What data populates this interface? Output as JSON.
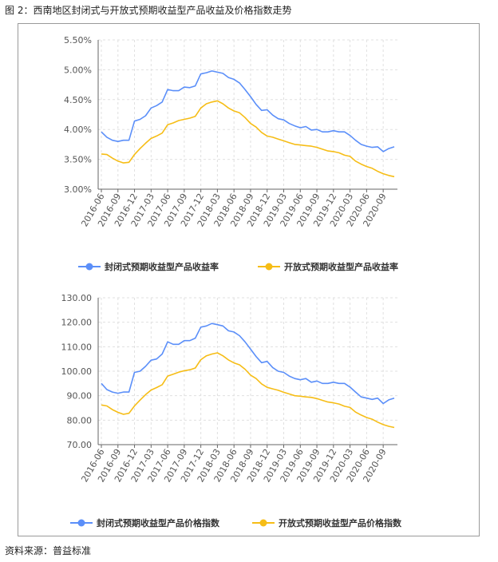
{
  "figure_title": "图 2：西南地区封闭式与开放式预期收益型产品收益及价格指数走势",
  "source": "资料来源：普益标准",
  "colors": {
    "closed": "#5b8ff9",
    "open": "#f6bd16",
    "axis": "#666666",
    "grid": "#e0e0e0"
  },
  "chart_data": [
    {
      "type": "line",
      "title": "",
      "xlabel": "",
      "ylabel": "",
      "ylim": [
        3.0,
        5.5
      ],
      "yticks": [
        "3.00%",
        "3.50%",
        "4.00%",
        "4.50%",
        "5.00%",
        "5.50%"
      ],
      "ytick_values": [
        3.0,
        3.5,
        4.0,
        4.5,
        5.0,
        5.5
      ],
      "grid": true,
      "legend_position": "bottom-center",
      "x": [
        "2016-06",
        "2016-07",
        "2016-08",
        "2016-09",
        "2016-10",
        "2016-11",
        "2016-12",
        "2017-01",
        "2017-02",
        "2017-03",
        "2017-04",
        "2017-05",
        "2017-06",
        "2017-07",
        "2017-08",
        "2017-09",
        "2017-10",
        "2017-11",
        "2017-12",
        "2018-01",
        "2018-02",
        "2018-03",
        "2018-04",
        "2018-05",
        "2018-06",
        "2018-07",
        "2018-08",
        "2018-09",
        "2018-10",
        "2018-11",
        "2018-12",
        "2019-01",
        "2019-02",
        "2019-03",
        "2019-04",
        "2019-05",
        "2019-06",
        "2019-07",
        "2019-08",
        "2019-09",
        "2019-10",
        "2019-11",
        "2019-12",
        "2020-01",
        "2020-02",
        "2020-03",
        "2020-04",
        "2020-05",
        "2020-06",
        "2020-07",
        "2020-08",
        "2020-09",
        "2020-10",
        "2020-11"
      ],
      "xtick_labels": [
        "2016-06",
        "2016-09",
        "2016-12",
        "2017-03",
        "2017-06",
        "2017-09",
        "2017-12",
        "2018-03",
        "2018-06",
        "2018-09",
        "2018-12",
        "2019-03",
        "2019-06",
        "2019-09",
        "2019-12",
        "2020-03",
        "2020-06",
        "2020-09"
      ],
      "series": [
        {
          "name": "封闭式预期收益型产品收益率",
          "color_key": "closed",
          "values": [
            3.96,
            3.87,
            3.82,
            3.8,
            3.82,
            3.82,
            4.14,
            4.17,
            4.23,
            4.36,
            4.4,
            4.46,
            4.67,
            4.65,
            4.65,
            4.71,
            4.7,
            4.73,
            4.93,
            4.95,
            4.98,
            4.96,
            4.94,
            4.87,
            4.84,
            4.78,
            4.67,
            4.55,
            4.42,
            4.32,
            4.33,
            4.24,
            4.18,
            4.16,
            4.1,
            4.06,
            4.03,
            4.05,
            3.99,
            4.0,
            3.96,
            3.96,
            3.98,
            3.96,
            3.96,
            3.9,
            3.82,
            3.75,
            3.72,
            3.7,
            3.71,
            3.63,
            3.68,
            3.71
          ]
        },
        {
          "name": "开放式预期收益型产品收益率",
          "color_key": "open",
          "values": [
            3.59,
            3.58,
            3.52,
            3.47,
            3.44,
            3.45,
            3.58,
            3.68,
            3.77,
            3.85,
            3.89,
            3.94,
            4.08,
            4.11,
            4.15,
            4.17,
            4.19,
            4.22,
            4.36,
            4.43,
            4.46,
            4.48,
            4.43,
            4.36,
            4.31,
            4.28,
            4.2,
            4.1,
            4.04,
            3.95,
            3.89,
            3.87,
            3.84,
            3.81,
            3.78,
            3.75,
            3.74,
            3.73,
            3.72,
            3.7,
            3.67,
            3.64,
            3.63,
            3.61,
            3.57,
            3.55,
            3.47,
            3.42,
            3.38,
            3.35,
            3.3,
            3.26,
            3.23,
            3.21
          ]
        }
      ]
    },
    {
      "type": "line",
      "title": "",
      "xlabel": "",
      "ylabel": "",
      "ylim": [
        70,
        130
      ],
      "yticks": [
        "70.00",
        "80.00",
        "90.00",
        "100.00",
        "110.00",
        "120.00",
        "130.00"
      ],
      "ytick_values": [
        70,
        80,
        90,
        100,
        110,
        120,
        130
      ],
      "grid": true,
      "legend_position": "bottom-center",
      "x": [
        "2016-06",
        "2016-07",
        "2016-08",
        "2016-09",
        "2016-10",
        "2016-11",
        "2016-12",
        "2017-01",
        "2017-02",
        "2017-03",
        "2017-04",
        "2017-05",
        "2017-06",
        "2017-07",
        "2017-08",
        "2017-09",
        "2017-10",
        "2017-11",
        "2017-12",
        "2018-01",
        "2018-02",
        "2018-03",
        "2018-04",
        "2018-05",
        "2018-06",
        "2018-07",
        "2018-08",
        "2018-09",
        "2018-10",
        "2018-11",
        "2018-12",
        "2019-01",
        "2019-02",
        "2019-03",
        "2019-04",
        "2019-05",
        "2019-06",
        "2019-07",
        "2019-08",
        "2019-09",
        "2019-10",
        "2019-11",
        "2019-12",
        "2020-01",
        "2020-02",
        "2020-03",
        "2020-04",
        "2020-05",
        "2020-06",
        "2020-07",
        "2020-08",
        "2020-09",
        "2020-10",
        "2020-11"
      ],
      "xtick_labels": [
        "2016-06",
        "2016-09",
        "2016-12",
        "2017-03",
        "2017-06",
        "2017-09",
        "2017-12",
        "2018-03",
        "2018-06",
        "2018-09",
        "2018-12",
        "2019-03",
        "2019-06",
        "2019-09",
        "2019-12",
        "2020-03",
        "2020-06",
        "2020-09"
      ],
      "series": [
        {
          "name": "封闭式预期收益型产品价格指数",
          "color_key": "closed",
          "values": [
            95.0,
            92.5,
            91.5,
            91.0,
            91.5,
            91.5,
            99.5,
            100.0,
            102.0,
            104.5,
            105.0,
            107.0,
            112.0,
            111.0,
            111.0,
            112.5,
            112.5,
            113.5,
            118.0,
            118.5,
            119.5,
            119.0,
            118.5,
            116.5,
            116.0,
            114.5,
            112.0,
            109.0,
            106.0,
            103.5,
            104.0,
            101.5,
            100.0,
            99.5,
            98.0,
            97.0,
            96.5,
            97.0,
            95.5,
            96.0,
            95.0,
            95.0,
            95.5,
            95.0,
            95.0,
            93.5,
            91.5,
            89.5,
            89.0,
            88.5,
            89.0,
            86.8,
            88.3,
            89.0
          ]
        },
        {
          "name": "开放式预期收益型产品价格指数",
          "color_key": "open",
          "values": [
            86.2,
            85.8,
            84.3,
            83.2,
            82.4,
            82.8,
            85.8,
            88.2,
            90.4,
            92.3,
            93.3,
            94.5,
            98.0,
            98.8,
            99.6,
            100.2,
            100.6,
            101.3,
            104.7,
            106.3,
            107.0,
            107.5,
            106.3,
            104.6,
            103.4,
            102.6,
            100.8,
            98.4,
            97.0,
            94.8,
            93.4,
            92.8,
            92.2,
            91.4,
            90.7,
            90.0,
            89.8,
            89.5,
            89.3,
            88.8,
            88.1,
            87.4,
            87.1,
            86.6,
            85.7,
            85.2,
            83.3,
            82.1,
            81.1,
            80.4,
            79.2,
            78.2,
            77.5,
            77.0
          ]
        }
      ]
    }
  ]
}
